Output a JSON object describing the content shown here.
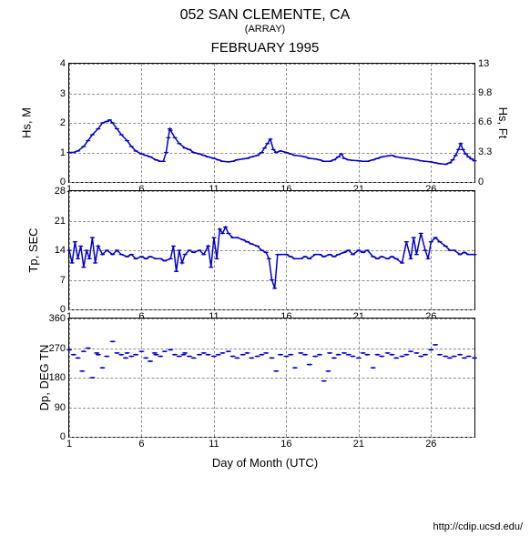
{
  "header": {
    "title": "052 SAN CLEMENTE, CA",
    "subtitle": "(ARRAY)",
    "month": "FEBRUARY 1995"
  },
  "colors": {
    "line": "#0000cc",
    "scatter": "#0000cc",
    "grid": "#909090",
    "axis": "#000000",
    "text": "#000000",
    "background": "#ffffff"
  },
  "xaxis": {
    "label": "Day of Month (UTC)",
    "min": 1,
    "max": 29,
    "ticks": [
      1,
      6,
      11,
      16,
      21,
      26
    ]
  },
  "footer": "http://cdip.ucsd.edu/",
  "panels": [
    {
      "id": "hs",
      "ylabel_left": "Hs, M",
      "ylabel_right": "Hs, Ft",
      "ymin": 0,
      "ymax": 4,
      "yticks_left": [
        0,
        1,
        2,
        3,
        4
      ],
      "yticks_right": [
        0,
        3.3,
        6.6,
        9.8,
        13
      ],
      "type": "line",
      "data": [
        [
          1,
          1.0
        ],
        [
          1.3,
          1.0
        ],
        [
          1.6,
          1.05
        ],
        [
          2,
          1.2
        ],
        [
          2.3,
          1.4
        ],
        [
          2.6,
          1.6
        ],
        [
          3,
          1.8
        ],
        [
          3.3,
          2.0
        ],
        [
          3.6,
          2.05
        ],
        [
          3.8,
          2.1
        ],
        [
          4,
          2.0
        ],
        [
          4.3,
          1.8
        ],
        [
          4.6,
          1.6
        ],
        [
          5,
          1.4
        ],
        [
          5.3,
          1.2
        ],
        [
          5.6,
          1.05
        ],
        [
          6,
          0.95
        ],
        [
          6.3,
          0.9
        ],
        [
          6.6,
          0.85
        ],
        [
          7,
          0.75
        ],
        [
          7.3,
          0.7
        ],
        [
          7.5,
          0.7
        ],
        [
          7.7,
          1.0
        ],
        [
          7.85,
          1.5
        ],
        [
          7.95,
          1.8
        ],
        [
          8,
          1.75
        ],
        [
          8.3,
          1.5
        ],
        [
          8.6,
          1.3
        ],
        [
          9,
          1.15
        ],
        [
          9.3,
          1.1
        ],
        [
          9.6,
          1.0
        ],
        [
          10,
          0.95
        ],
        [
          10.3,
          0.9
        ],
        [
          10.6,
          0.85
        ],
        [
          11,
          0.8
        ],
        [
          11.3,
          0.75
        ],
        [
          11.6,
          0.7
        ],
        [
          12,
          0.68
        ],
        [
          12.3,
          0.7
        ],
        [
          12.6,
          0.75
        ],
        [
          13,
          0.78
        ],
        [
          13.3,
          0.8
        ],
        [
          13.6,
          0.85
        ],
        [
          14,
          0.9
        ],
        [
          14.3,
          1.0
        ],
        [
          14.5,
          1.15
        ],
        [
          14.7,
          1.3
        ],
        [
          14.9,
          1.45
        ],
        [
          15.1,
          1.1
        ],
        [
          15.3,
          1.0
        ],
        [
          15.6,
          1.05
        ],
        [
          16,
          1.0
        ],
        [
          16.3,
          0.95
        ],
        [
          16.6,
          0.9
        ],
        [
          17,
          0.88
        ],
        [
          17.3,
          0.85
        ],
        [
          17.6,
          0.8
        ],
        [
          18,
          0.78
        ],
        [
          18.3,
          0.75
        ],
        [
          18.6,
          0.7
        ],
        [
          19,
          0.7
        ],
        [
          19.3,
          0.75
        ],
        [
          19.6,
          0.85
        ],
        [
          19.8,
          0.95
        ],
        [
          20,
          0.8
        ],
        [
          20.3,
          0.75
        ],
        [
          20.6,
          0.73
        ],
        [
          21,
          0.72
        ],
        [
          21.3,
          0.7
        ],
        [
          21.6,
          0.7
        ],
        [
          22,
          0.75
        ],
        [
          22.3,
          0.8
        ],
        [
          22.6,
          0.85
        ],
        [
          23,
          0.88
        ],
        [
          23.3,
          0.9
        ],
        [
          23.6,
          0.85
        ],
        [
          24,
          0.82
        ],
        [
          24.3,
          0.8
        ],
        [
          24.6,
          0.78
        ],
        [
          25,
          0.75
        ],
        [
          25.3,
          0.72
        ],
        [
          25.6,
          0.7
        ],
        [
          26,
          0.68
        ],
        [
          26.3,
          0.65
        ],
        [
          26.6,
          0.62
        ],
        [
          27,
          0.6
        ],
        [
          27.3,
          0.65
        ],
        [
          27.5,
          0.75
        ],
        [
          27.7,
          0.9
        ],
        [
          27.9,
          1.1
        ],
        [
          28.05,
          1.3
        ],
        [
          28.2,
          1.1
        ],
        [
          28.4,
          0.95
        ],
        [
          28.6,
          0.85
        ],
        [
          28.8,
          0.78
        ],
        [
          29,
          0.72
        ]
      ]
    },
    {
      "id": "tp",
      "ylabel_left": "Tp, SEC",
      "ymin": 0,
      "ymax": 28,
      "yticks_left": [
        0,
        7,
        14,
        21,
        28
      ],
      "type": "line",
      "data": [
        [
          1,
          14
        ],
        [
          1.2,
          11
        ],
        [
          1.4,
          16
        ],
        [
          1.6,
          12
        ],
        [
          1.8,
          15
        ],
        [
          2,
          10
        ],
        [
          2.2,
          14
        ],
        [
          2.4,
          12
        ],
        [
          2.6,
          17
        ],
        [
          2.8,
          11
        ],
        [
          3,
          15
        ],
        [
          3.3,
          13
        ],
        [
          3.6,
          14
        ],
        [
          4,
          13
        ],
        [
          4.3,
          14
        ],
        [
          4.6,
          13
        ],
        [
          5,
          12.5
        ],
        [
          5.3,
          13
        ],
        [
          5.6,
          12
        ],
        [
          6,
          12.5
        ],
        [
          6.3,
          12
        ],
        [
          6.6,
          12.5
        ],
        [
          7,
          12
        ],
        [
          7.3,
          12
        ],
        [
          7.6,
          11.5
        ],
        [
          8,
          12
        ],
        [
          8.2,
          15
        ],
        [
          8.4,
          9
        ],
        [
          8.6,
          14
        ],
        [
          8.8,
          11
        ],
        [
          9,
          13
        ],
        [
          9.3,
          14
        ],
        [
          9.6,
          13.5
        ],
        [
          10,
          14
        ],
        [
          10.3,
          13
        ],
        [
          10.6,
          15
        ],
        [
          10.8,
          10
        ],
        [
          11,
          17
        ],
        [
          11.2,
          12
        ],
        [
          11.4,
          19
        ],
        [
          11.6,
          18
        ],
        [
          11.8,
          19.5
        ],
        [
          12,
          18
        ],
        [
          12.3,
          17
        ],
        [
          12.6,
          17
        ],
        [
          13,
          16.5
        ],
        [
          13.3,
          16
        ],
        [
          13.6,
          15.5
        ],
        [
          14,
          15
        ],
        [
          14.3,
          14
        ],
        [
          14.6,
          13.5
        ],
        [
          14.8,
          12
        ],
        [
          15,
          7
        ],
        [
          15.2,
          5
        ],
        [
          15.4,
          13
        ],
        [
          15.6,
          13
        ],
        [
          16,
          13
        ],
        [
          16.3,
          12.5
        ],
        [
          16.6,
          12
        ],
        [
          17,
          12
        ],
        [
          17.3,
          12.5
        ],
        [
          17.6,
          12
        ],
        [
          18,
          13
        ],
        [
          18.3,
          13
        ],
        [
          18.6,
          12.5
        ],
        [
          19,
          13
        ],
        [
          19.3,
          12.5
        ],
        [
          19.6,
          13
        ],
        [
          20,
          13.5
        ],
        [
          20.3,
          14
        ],
        [
          20.6,
          13
        ],
        [
          21,
          14
        ],
        [
          21.3,
          13.5
        ],
        [
          21.6,
          14
        ],
        [
          22,
          12.5
        ],
        [
          22.3,
          12
        ],
        [
          22.6,
          12.5
        ],
        [
          23,
          12
        ],
        [
          23.3,
          12.5
        ],
        [
          23.6,
          12
        ],
        [
          24,
          11
        ],
        [
          24.3,
          16
        ],
        [
          24.6,
          12
        ],
        [
          24.8,
          17
        ],
        [
          25,
          13
        ],
        [
          25.3,
          18
        ],
        [
          25.6,
          14
        ],
        [
          25.8,
          12
        ],
        [
          26,
          16
        ],
        [
          26.3,
          17
        ],
        [
          26.6,
          16
        ],
        [
          27,
          15
        ],
        [
          27.3,
          14
        ],
        [
          27.6,
          14
        ],
        [
          28,
          13
        ],
        [
          28.3,
          13.5
        ],
        [
          28.6,
          13
        ],
        [
          29,
          13
        ]
      ]
    },
    {
      "id": "dp",
      "ylabel_left": "Dp, DEG TN",
      "ymin": 0,
      "ymax": 360,
      "yticks_left": [
        0,
        90,
        180,
        270,
        360
      ],
      "type": "scatter",
      "data": [
        [
          1,
          265
        ],
        [
          1.3,
          250
        ],
        [
          1.6,
          240
        ],
        [
          1.9,
          200
        ],
        [
          2,
          260
        ],
        [
          2.3,
          270
        ],
        [
          2.6,
          180
        ],
        [
          2.9,
          255
        ],
        [
          3,
          250
        ],
        [
          3.3,
          210
        ],
        [
          3.6,
          245
        ],
        [
          4,
          290
        ],
        [
          4.3,
          255
        ],
        [
          4.6,
          250
        ],
        [
          4.9,
          240
        ],
        [
          5,
          255
        ],
        [
          5.3,
          245
        ],
        [
          5.6,
          250
        ],
        [
          6,
          260
        ],
        [
          6.3,
          240
        ],
        [
          6.6,
          230
        ],
        [
          6.9,
          255
        ],
        [
          7,
          250
        ],
        [
          7.3,
          245
        ],
        [
          7.6,
          260
        ],
        [
          8,
          265
        ],
        [
          8.3,
          250
        ],
        [
          8.6,
          245
        ],
        [
          8.9,
          250
        ],
        [
          9,
          255
        ],
        [
          9.3,
          245
        ],
        [
          9.6,
          240
        ],
        [
          10,
          250
        ],
        [
          10.3,
          255
        ],
        [
          10.6,
          250
        ],
        [
          11,
          245
        ],
        [
          11.3,
          250
        ],
        [
          11.6,
          255
        ],
        [
          12,
          260
        ],
        [
          12.3,
          245
        ],
        [
          12.6,
          240
        ],
        [
          13,
          250
        ],
        [
          13.3,
          255
        ],
        [
          13.6,
          240
        ],
        [
          14,
          245
        ],
        [
          14.3,
          250
        ],
        [
          14.6,
          255
        ],
        [
          15,
          240
        ],
        [
          15.3,
          200
        ],
        [
          15.6,
          250
        ],
        [
          16,
          245
        ],
        [
          16.3,
          250
        ],
        [
          16.6,
          210
        ],
        [
          17,
          255
        ],
        [
          17.3,
          250
        ],
        [
          17.6,
          220
        ],
        [
          18,
          245
        ],
        [
          18.3,
          250
        ],
        [
          18.6,
          170
        ],
        [
          18.9,
          200
        ],
        [
          19,
          255
        ],
        [
          19.3,
          240
        ],
        [
          19.6,
          250
        ],
        [
          20,
          255
        ],
        [
          20.3,
          250
        ],
        [
          20.6,
          245
        ],
        [
          21,
          240
        ],
        [
          21.3,
          255
        ],
        [
          21.6,
          250
        ],
        [
          22,
          210
        ],
        [
          22.3,
          250
        ],
        [
          22.6,
          245
        ],
        [
          23,
          255
        ],
        [
          23.3,
          250
        ],
        [
          23.6,
          240
        ],
        [
          24,
          245
        ],
        [
          24.3,
          250
        ],
        [
          24.6,
          260
        ],
        [
          25,
          255
        ],
        [
          25.3,
          245
        ],
        [
          25.6,
          250
        ],
        [
          26,
          265
        ],
        [
          26.3,
          280
        ],
        [
          26.6,
          250
        ],
        [
          27,
          245
        ],
        [
          27.3,
          240
        ],
        [
          27.6,
          245
        ],
        [
          28,
          250
        ],
        [
          28.3,
          240
        ],
        [
          28.6,
          245
        ],
        [
          29,
          240
        ]
      ]
    }
  ]
}
